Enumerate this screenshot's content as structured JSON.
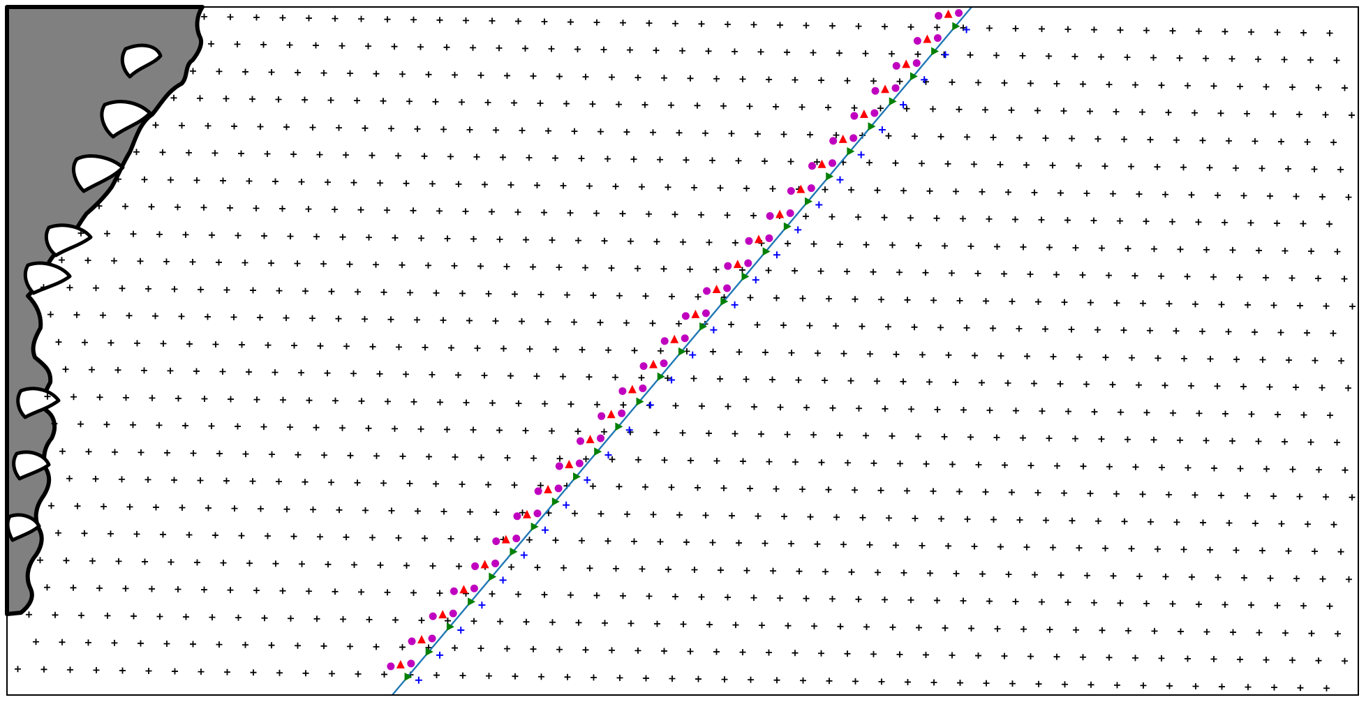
{
  "figure": {
    "kind": "map",
    "description_free": true
  },
  "colors": {
    "background": "#ffffff",
    "frame": "#000000",
    "land_fill": "#808080",
    "coastline": "#000000",
    "grid_marker": "#000000",
    "track_line": "#1f77b4",
    "blue_cross": "#0000ff",
    "green_triangle": "#008000",
    "red_triangle": "#ff0000",
    "magenta_circle": "#bf00bf"
  },
  "layers": [
    {
      "id": "land",
      "icon": "land-polygon"
    },
    {
      "id": "coastline",
      "icon": "coastline-stroke"
    },
    {
      "id": "grid",
      "icon": "plus-marker"
    },
    {
      "id": "track",
      "icon": "line"
    },
    {
      "id": "swath-cross",
      "icon": "plus-marker"
    },
    {
      "id": "swath-green",
      "icon": "triangle-right-marker"
    },
    {
      "id": "swath-red",
      "icon": "triangle-up-marker"
    },
    {
      "id": "swath-magenta",
      "icon": "circle-marker"
    }
  ]
}
